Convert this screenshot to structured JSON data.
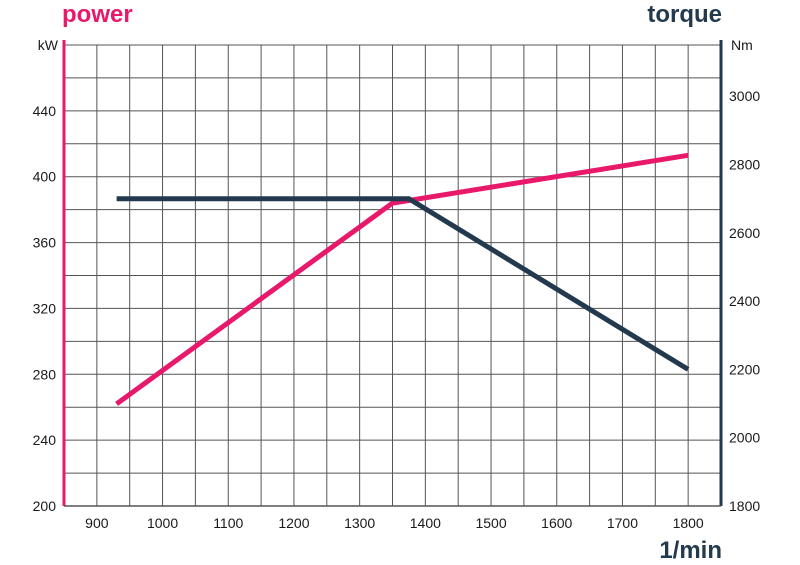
{
  "chart_data": {
    "type": "line",
    "title_left": "power",
    "title_right": "torque",
    "xlabel": "1/min",
    "ylabel_left_unit": "kW",
    "ylabel_right_unit": "Nm",
    "xlim": [
      850,
      1850
    ],
    "ylim_left": [
      200,
      480
    ],
    "ylim_right": [
      1800,
      3150
    ],
    "grid": true,
    "x_ticks": [
      900,
      1000,
      1100,
      1200,
      1300,
      1400,
      1500,
      1600,
      1700,
      1800
    ],
    "y_left_ticks": [
      200,
      240,
      280,
      320,
      360,
      400,
      440
    ],
    "y_right_ticks": [
      1800,
      2000,
      2200,
      2400,
      2600,
      2800,
      3000
    ],
    "series": [
      {
        "name": "power",
        "axis": "left",
        "color": "#e8196b",
        "points": [
          [
            930,
            262
          ],
          [
            1350,
            384
          ],
          [
            1800,
            413
          ]
        ]
      },
      {
        "name": "torque",
        "axis": "right",
        "color": "#233a4e",
        "points": [
          [
            930,
            2700
          ],
          [
            1375,
            2700
          ],
          [
            1800,
            2200
          ]
        ]
      }
    ]
  },
  "colors": {
    "power": "#e8196b",
    "torque": "#233a4e",
    "grid": "#555555",
    "axis_left": "#e8196b",
    "axis_right": "#233a4e"
  }
}
